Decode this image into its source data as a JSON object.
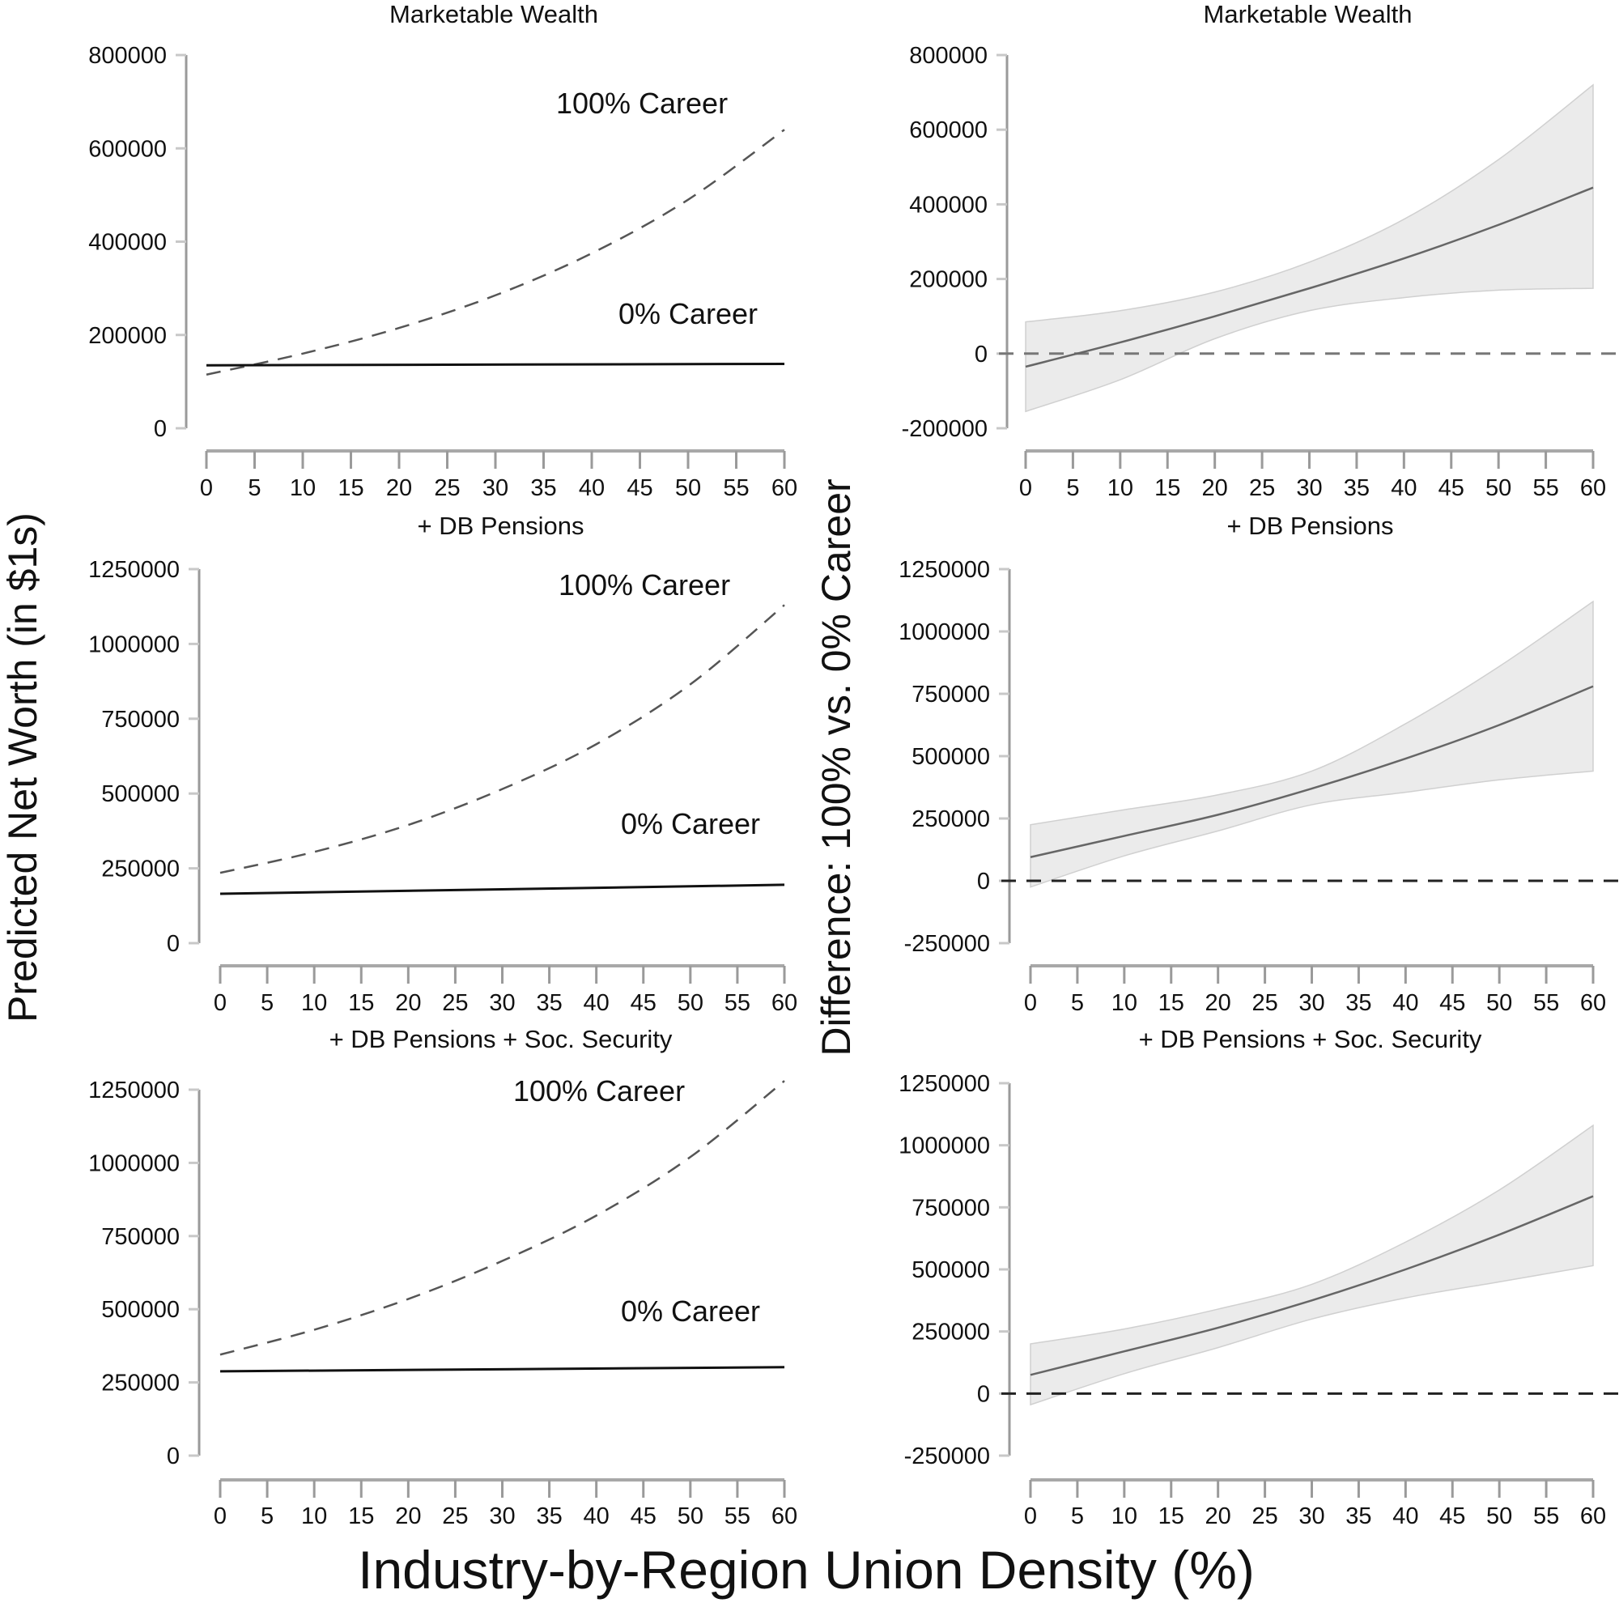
{
  "chart_data": {
    "type": "line",
    "xlabel": "Industry-by-Region Union Density (%)",
    "ylabel_left": "Predicted Net Worth (in $1s)",
    "ylabel_right": "Difference: 100% vs. 0% Career",
    "x_ticks": [
      0,
      5,
      10,
      15,
      20,
      25,
      30,
      35,
      40,
      45,
      50,
      55,
      60
    ],
    "panels": [
      {
        "id": "top-left",
        "title": "Marketable Wealth",
        "kind": "levels",
        "ylim": [
          0,
          800000
        ],
        "y_ticks": [
          0,
          200000,
          400000,
          600000,
          800000
        ],
        "series": [
          {
            "name": "100% Career",
            "style": "dashed",
            "x": [
              0,
              10,
              20,
              30,
              40,
              50,
              60
            ],
            "y": [
              115000,
              160000,
              215000,
              285000,
              375000,
              490000,
              640000
            ]
          },
          {
            "name": "0% Career",
            "style": "solid",
            "x": [
              0,
              60
            ],
            "y": [
              135000,
              138000
            ]
          }
        ],
        "labels": [
          {
            "text": "100% Career",
            "series": "100% Career"
          },
          {
            "text": "0% Career",
            "series": "0% Career"
          }
        ]
      },
      {
        "id": "top-right",
        "title": "Marketable Wealth",
        "kind": "difference",
        "ylim": [
          -200000,
          800000
        ],
        "y_ticks": [
          -200000,
          0,
          200000,
          400000,
          600000,
          800000
        ],
        "x": [
          0,
          10,
          20,
          30,
          40,
          50,
          60
        ],
        "mean": [
          -35000,
          30000,
          100000,
          175000,
          255000,
          345000,
          445000
        ],
        "lower": [
          -155000,
          -70000,
          40000,
          115000,
          150000,
          170000,
          175000
        ],
        "upper": [
          85000,
          115000,
          165000,
          245000,
          360000,
          520000,
          720000
        ]
      },
      {
        "id": "middle-left",
        "title": "+ DB Pensions",
        "kind": "levels",
        "ylim": [
          0,
          1250000
        ],
        "y_ticks": [
          0,
          250000,
          500000,
          750000,
          1000000,
          1250000
        ],
        "series": [
          {
            "name": "100% Career",
            "style": "dashed",
            "x": [
              0,
              10,
              20,
              30,
              40,
              50,
              60
            ],
            "y": [
              235000,
              305000,
              395000,
              515000,
              665000,
              865000,
              1130000
            ]
          },
          {
            "name": "0% Career",
            "style": "solid",
            "x": [
              0,
              60
            ],
            "y": [
              165000,
              195000
            ]
          }
        ],
        "labels": [
          {
            "text": "100% Career",
            "series": "100% Career"
          },
          {
            "text": "0% Career",
            "series": "0% Career"
          }
        ]
      },
      {
        "id": "middle-right",
        "title": "+ DB Pensions",
        "kind": "difference",
        "ylim": [
          -250000,
          1250000
        ],
        "y_ticks": [
          -250000,
          0,
          250000,
          500000,
          750000,
          1000000,
          1250000
        ],
        "x": [
          0,
          10,
          20,
          30,
          40,
          50,
          60
        ],
        "mean": [
          95000,
          180000,
          265000,
          370000,
          490000,
          625000,
          780000
        ],
        "lower": [
          -25000,
          100000,
          200000,
          305000,
          355000,
          405000,
          440000
        ],
        "upper": [
          225000,
          285000,
          345000,
          440000,
          630000,
          860000,
          1120000
        ]
      },
      {
        "id": "bottom-left",
        "title": "+ DB Pensions + Soc. Security",
        "kind": "levels",
        "ylim": [
          0,
          1250000
        ],
        "y_ticks": [
          0,
          250000,
          500000,
          750000,
          1000000,
          1250000
        ],
        "series": [
          {
            "name": "100% Career",
            "style": "dashed",
            "x": [
              0,
              10,
              20,
              30,
              40,
              50,
              60
            ],
            "y": [
              345000,
              430000,
              535000,
              665000,
              820000,
              1020000,
              1280000
            ]
          },
          {
            "name": "0% Career",
            "style": "solid",
            "x": [
              0,
              60
            ],
            "y": [
              288000,
              302000
            ]
          }
        ],
        "labels": [
          {
            "text": "100% Career",
            "series": "100% Career"
          },
          {
            "text": "0% Career",
            "series": "0% Career"
          }
        ]
      },
      {
        "id": "bottom-right",
        "title": "+ DB Pensions + Soc. Security",
        "kind": "difference",
        "ylim": [
          -250000,
          1250000
        ],
        "y_ticks": [
          -250000,
          0,
          250000,
          500000,
          750000,
          1000000,
          1250000
        ],
        "x": [
          0,
          10,
          20,
          30,
          40,
          50,
          60
        ],
        "mean": [
          75000,
          170000,
          265000,
          375000,
          500000,
          640000,
          795000
        ],
        "lower": [
          -45000,
          80000,
          185000,
          300000,
          385000,
          450000,
          515000
        ],
        "upper": [
          200000,
          260000,
          340000,
          440000,
          610000,
          820000,
          1080000
        ]
      }
    ],
    "grid": false,
    "legend": "none (inline curve labels)"
  }
}
